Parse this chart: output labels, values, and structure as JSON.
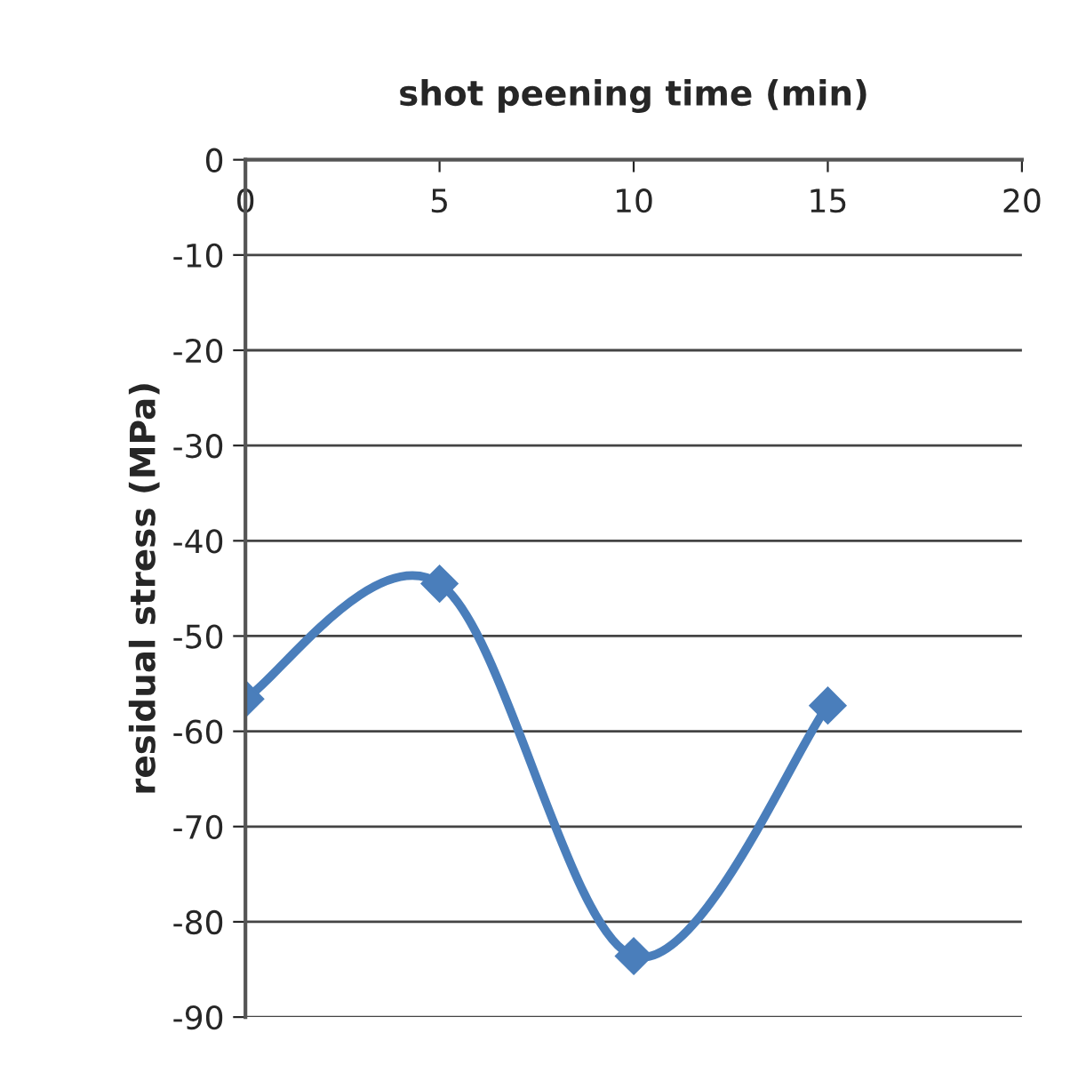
{
  "chart_data": {
    "type": "line",
    "xlabel": "shot peening time (min)",
    "ylabel": "residual stress (MPa)",
    "x": [
      0,
      5,
      10,
      15
    ],
    "series": [
      {
        "color": "#4a7ebb",
        "values": [
          -56.6,
          -44.5,
          -83.6,
          -57.3
        ]
      }
    ],
    "xlim": [
      0,
      20
    ],
    "xticks": [
      0,
      5,
      10,
      15,
      20
    ],
    "ylim": [
      -90,
      0
    ],
    "yticks": [
      -90,
      -80,
      -70,
      -60,
      -50,
      -40,
      -30,
      -20,
      -10,
      0
    ],
    "grid": "y",
    "marker": "diamond",
    "line_style": "solid",
    "legend": false
  }
}
